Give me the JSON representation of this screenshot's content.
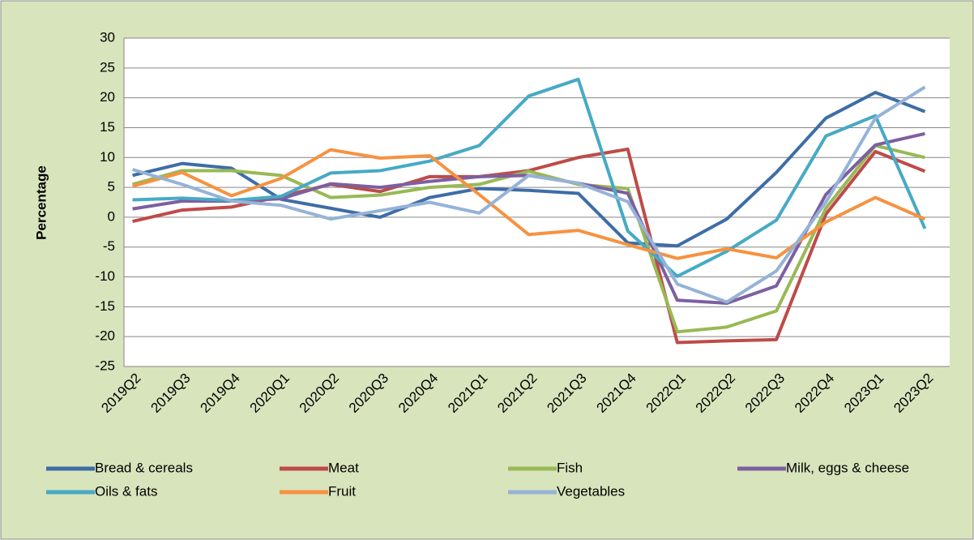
{
  "chart_data": {
    "type": "line",
    "y_label": "Percentage",
    "categories": [
      "2019Q2",
      "2019Q3",
      "2019Q4",
      "2020Q1",
      "2020Q2",
      "2020Q3",
      "2020Q4",
      "2021Q1",
      "2021Q2",
      "2021Q3",
      "2021Q4",
      "2022Q1",
      "2022Q2",
      "2022Q3",
      "2022Q4",
      "2023Q1",
      "2023Q2"
    ],
    "series": [
      {
        "name": "Bread & cereals",
        "color": "#3e6da6",
        "values": [
          7,
          9,
          8.2,
          3,
          1.5,
          0,
          3.3,
          4.8,
          4.5,
          4,
          -4.3,
          -4.8,
          -0.3,
          7.5,
          16.6,
          20.9,
          17.7
        ]
      },
      {
        "name": "Meat",
        "color": "#be4b48",
        "values": [
          -0.7,
          1.2,
          1.7,
          3.5,
          5.5,
          4.3,
          6.8,
          6.8,
          7.8,
          10,
          11.4,
          -21,
          -20.7,
          -20.5,
          0.5,
          11,
          7.7
        ]
      },
      {
        "name": "Fish",
        "color": "#98b954",
        "values": [
          5.5,
          7.8,
          7.8,
          7,
          3.3,
          3.7,
          5,
          5.5,
          7.7,
          5.5,
          4.8,
          -19.2,
          -18.4,
          -15.7,
          1.5,
          12,
          10
        ]
      },
      {
        "name": "Milk, eggs & cheese",
        "color": "#7d5fa0",
        "values": [
          1.4,
          2.7,
          2.7,
          3.1,
          5.6,
          5,
          6,
          6.8,
          7,
          5.7,
          4,
          -13.9,
          -14.4,
          -11.5,
          3.8,
          12.1,
          14
        ]
      },
      {
        "name": "Oils & fats",
        "color": "#46aac5",
        "values": [
          2.9,
          3.2,
          2.8,
          3.5,
          7.4,
          7.8,
          9.4,
          12,
          20.3,
          23.1,
          -2.3,
          -9.9,
          -5.7,
          -0.5,
          13.6,
          17,
          -1.9
        ]
      },
      {
        "name": "Fruit",
        "color": "#f69240",
        "values": [
          5.2,
          7.5,
          3.6,
          6.5,
          11.3,
          9.9,
          10.3,
          3.8,
          -2.9,
          -2.2,
          -4.6,
          -6.9,
          -5.3,
          -6.8,
          -0.8,
          3.3,
          -0.3
        ]
      },
      {
        "name": "Vegetables",
        "color": "#95b3d7",
        "values": [
          8,
          5.5,
          2.7,
          2,
          -0.3,
          1.1,
          2.5,
          0.7,
          7,
          5.7,
          2.6,
          -11.2,
          -14.2,
          -9,
          2.5,
          16.6,
          21.8
        ]
      }
    ],
    "ylim": [
      -25,
      30
    ],
    "yticks": [
      -25,
      -20,
      -15,
      -10,
      -5,
      0,
      5,
      10,
      15,
      20,
      25,
      30
    ],
    "grid": true,
    "legend": "bottom"
  }
}
